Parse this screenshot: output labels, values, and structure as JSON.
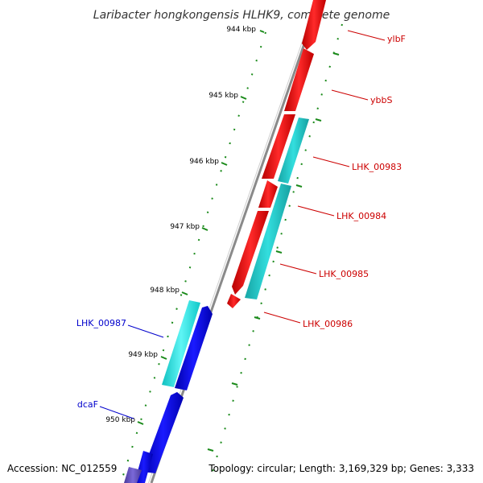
{
  "title": "Laribacter hongkongensis HLHK9, complete genome",
  "footer": {
    "accession": "Accession: NC_012559",
    "summary": "Topology: circular; Length: 3,169,329 bp; Genes: 3,333"
  },
  "ticks": [
    "944 kbp",
    "945 kbp",
    "946 kbp",
    "947 kbp",
    "948 kbp",
    "949 kbp",
    "950 kbp"
  ],
  "gene_labels": {
    "forward": [
      "ylbF",
      "ybbS",
      "LHK_00983",
      "LHK_00984",
      "LHK_00985",
      "LHK_00986"
    ],
    "reverse": [
      "LHK_00987",
      "dcaF"
    ]
  },
  "colors": {
    "forward_cds": "#ff0000",
    "forward_rna": "#1fc8c8",
    "reverse_cds": "#0000ee",
    "reverse_rna": "#22e8e8",
    "reverse_other": "#6650c0",
    "backbone": "#888888",
    "dots": "#1a8a1a",
    "forward_label": "#cc0000",
    "reverse_label": "#0000cc"
  }
}
